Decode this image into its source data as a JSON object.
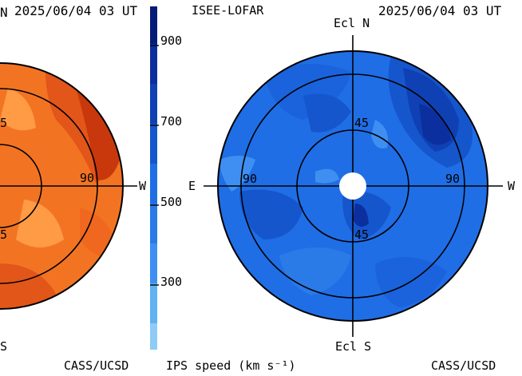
{
  "left_panel": {
    "timestamp": "2025/06/04 03 UT",
    "north_fragment": "N",
    "south_fragment": "S",
    "west_label": "W",
    "ring_label_90": "90",
    "ring_label_45_top": "5",
    "ring_label_45_bottom": "5",
    "credit": "CASS/UCSD"
  },
  "colorbar": {
    "title": "ISEE-LOFAR",
    "tick_labels": [
      "900",
      "700",
      "500",
      "300"
    ],
    "unit_label": "IPS speed (km s⁻¹)"
  },
  "right_panel": {
    "timestamp": "2025/06/04 03 UT",
    "north_label": "Ecl N",
    "south_label": "Ecl S",
    "east_label": "E",
    "west_label": "W",
    "ring_label_90_left": "90",
    "ring_label_90_right": "90",
    "ring_label_45_top": "45",
    "ring_label_45_bottom": "45",
    "credit": "CASS/UCSD"
  },
  "colors": {
    "orange_base": "#f27423",
    "orange_dark": "#c8380c",
    "orange_light": "#ff9a45",
    "blue_base": "#1f6ee6",
    "blue_dark": "#0b2f9e",
    "blue_light": "#3f8ff2"
  }
}
